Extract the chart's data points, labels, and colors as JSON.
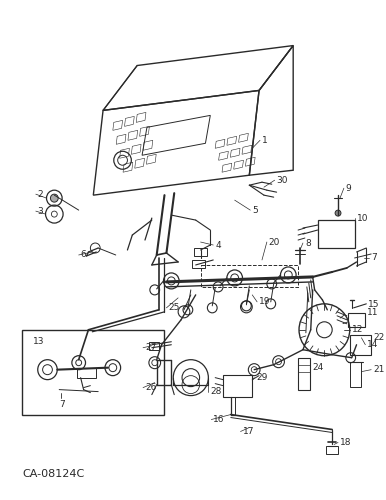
{
  "bg_color": "#ffffff",
  "line_color": "#2a2a2a",
  "caption": "CA-08124C",
  "figsize": [
    3.86,
    5.0
  ],
  "dpi": 100
}
